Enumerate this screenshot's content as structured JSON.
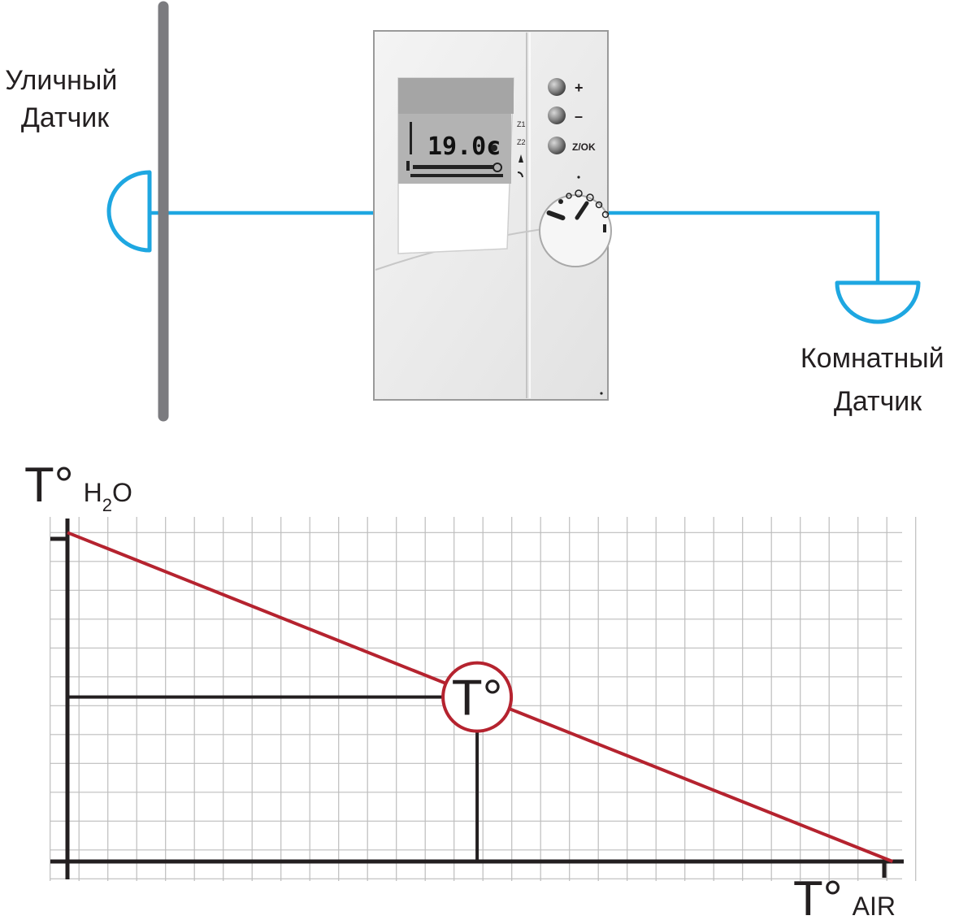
{
  "labels": {
    "outdoor_sensor": [
      "Уличный",
      "Датчик"
    ],
    "room_sensor": [
      "Комнатный",
      "Датчик"
    ]
  },
  "thermostat": {
    "display_temperature": "19.0c",
    "zone_labels": [
      "Z1",
      "Z2"
    ],
    "buttons": [
      {
        "label": "+"
      },
      {
        "label": "–"
      },
      {
        "label": "Z/OK"
      }
    ]
  },
  "graph": {
    "y_axis": {
      "symbol": "T°",
      "sub_main": "H",
      "sub_index": "2",
      "sub_tail": "O"
    },
    "x_axis": {
      "symbol": "T°",
      "subscript": "AIR"
    },
    "operating_point_label": "T°",
    "grid_columns": 29,
    "grid_rows": 12,
    "heating_curve": {
      "start": [
        0,
        11.4
      ],
      "end": [
        28.6,
        0
      ]
    },
    "operating_point": [
      14.2,
      5.7
    ]
  },
  "colors": {
    "sensor_wire": "#1ea7e1",
    "heating_curve": "#b5232f",
    "axis": "#231f20",
    "grid": "#bdbdbd",
    "wall": "#7b7b7f",
    "device_body": "#eeeeee"
  }
}
